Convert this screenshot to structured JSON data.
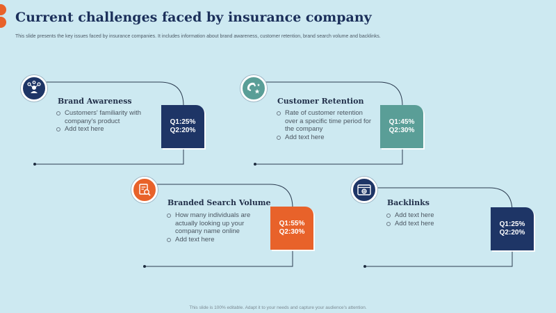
{
  "header": {
    "title": "Current challenges faced by insurance company",
    "subtitle": "This slide presents the key issues faced by insurance companies. It includes information about brand awareness, customer retention, brand search volume and backlinks."
  },
  "footer": "This slide is 100% editable. Adapt it to your needs and capture your audience's attention.",
  "colors": {
    "background": "#cde9f1",
    "navy": "#1e3566",
    "teal": "#5a9e97",
    "orange": "#e8622a",
    "accent_dots": "#e8622a"
  },
  "cards": [
    {
      "heading": "Brand Awareness",
      "icon": "people-network-icon",
      "color": "#1e3566",
      "bullets": [
        "Customers' familiarity with company's product",
        "Add text here"
      ],
      "q1": "Q1:25%",
      "q2": "Q2:20%"
    },
    {
      "heading": "Customer Retention",
      "icon": "magnet-stars-icon",
      "color": "#5a9e97",
      "bullets": [
        "Rate of customer retention over a specific time period for the company",
        "Add text here"
      ],
      "q1": "Q1:45%",
      "q2": "Q2:30%"
    },
    {
      "heading": "Branded Search Volume",
      "icon": "search-document-icon",
      "color": "#e8622a",
      "bullets": [
        "How many individuals are actually looking up your company name online",
        "Add text here"
      ],
      "q1": "Q1:55%",
      "q2": "Q2:30%"
    },
    {
      "heading": "Backlinks",
      "icon": "browser-link-icon",
      "color": "#1e3566",
      "bullets": [
        "Add text here",
        "Add text here"
      ],
      "q1": "Q1:25%",
      "q2": "Q2:20%"
    }
  ]
}
